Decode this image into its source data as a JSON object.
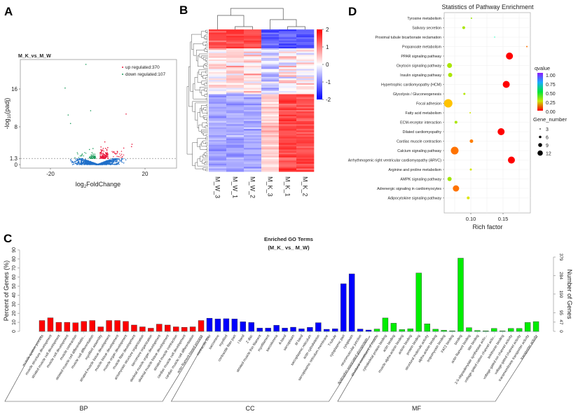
{
  "panels": {
    "a": "A",
    "b": "B",
    "c": "C",
    "d": "D"
  },
  "chart_data": [
    {
      "panel": "A",
      "type": "scatter",
      "title": "M_K_vs_M_W",
      "xlabel": {
        "pre": "log",
        "sub": "2",
        "post": "FoldChange"
      },
      "ylabel": {
        "pre": "-log",
        "sub": "10",
        "post": "(padj)"
      },
      "xticks": [
        "-20",
        "20"
      ],
      "xtick_values": [
        -20,
        20
      ],
      "yticks": [
        "0",
        "1.3",
        "8",
        "16"
      ],
      "ytick_values": [
        0,
        1.3,
        8,
        16
      ],
      "xlim": [
        -33,
        33
      ],
      "ylim": [
        -0.8,
        22.3
      ],
      "threshold_line": 1.3,
      "legend": [
        {
          "label": "up regulated:370",
          "color": "#e8173b"
        },
        {
          "label": "down regulated:107",
          "color": "#1a9a5a"
        }
      ],
      "colors": {
        "up": "#e8173b",
        "down": "#1a9a5a",
        "ns": "#1f6fc9"
      },
      "outliers": [
        [
          -5,
          21.2
        ],
        [
          -13.8,
          16.2
        ],
        [
          -12.5,
          10.5
        ],
        [
          -11.5,
          8.7
        ],
        [
          -3,
          11.4
        ],
        [
          12,
          10.7
        ],
        [
          14.5,
          4.3
        ],
        [
          14.3,
          3.8
        ],
        [
          3,
          4.8
        ],
        [
          11,
          3.5
        ],
        [
          -2,
          3.4
        ],
        [
          -3.5,
          3.2
        ]
      ]
    },
    {
      "panel": "B",
      "type": "heatmap",
      "columns": [
        "M_W_3",
        "M_W_1",
        "M_W_2",
        "M_K_3",
        "M_K_1",
        "M_K_2"
      ],
      "colorbar": {
        "ticks": [
          "2",
          "1",
          "0",
          "-1",
          "-2"
        ],
        "tick_values": [
          2,
          1,
          0,
          -1,
          -2
        ],
        "low": "#0000ff",
        "mid": "#ffffff",
        "high": "#ff0000"
      }
    },
    {
      "panel": "C",
      "type": "bar",
      "title": "Enriched GO Terms",
      "subtitle": "(M_K_ vs_ M_W)",
      "ylabel": "Percent of Genes (%)",
      "ylabel_right": "Number of Genes",
      "yticks": [
        "0",
        "10",
        "20",
        "30",
        "40",
        "50",
        "60",
        "70",
        "80",
        "90"
      ],
      "ylim": [
        0,
        90
      ],
      "yticks_right": [
        "0",
        "47",
        "95",
        "190",
        "284",
        "379"
      ],
      "groups": [
        {
          "name": "BP",
          "color": "#ff0000",
          "categories": [
            "muscle system process",
            "muscle structure development",
            "striated muscle cell development",
            "muscle cell development",
            "muscle contraction",
            "striated muscle cell differentiatio...",
            "muscle cell differentiation",
            "myofibril assembly",
            "striated muscle tissue development",
            "muscle tissue development",
            "muscle organ development",
            "muscle fiber development",
            "actomyosin structure organization",
            "sarcomere organization",
            "skeletal muscle organ development",
            "skeletal muscle tissue development",
            "striated muscle contraction",
            "cardiac muscle cell development",
            "cardiac muscle cell differentiation",
            "actin filament-based process"
          ],
          "values": [
            12,
            15,
            10,
            10,
            9.5,
            11,
            12,
            5,
            12,
            12,
            11,
            7,
            5,
            3.5,
            8,
            7,
            5,
            4.5,
            5,
            12
          ]
        },
        {
          "name": "CC",
          "color": "#0000ff",
          "categories": [
            "contractile fiber",
            "sarcomere",
            "myofibril",
            "contractile fiber part",
            "I band",
            "Z disc",
            "striated muscle thin filament",
            "myofilament",
            "sarcolemma",
            "A band",
            "sarcoplasm",
            "M band",
            "sarcoplasmic reticulum",
            "actin cytoskeleton",
            "sarcoplasmic reticulum membrane",
            "T-tubule",
            "cytoplasmic part",
            "cytoplasm",
            "neuromuscular junction",
            "dystrophin-associated glycoprotein ..."
          ],
          "values": [
            14.5,
            13.7,
            14,
            13.7,
            10.6,
            9.8,
            3.6,
            3.6,
            6.7,
            3.6,
            4.6,
            2.8,
            4.4,
            9.6,
            2.3,
            2.8,
            52.7,
            63.6,
            2.6,
            1.5
          ]
        },
        {
          "name": "MF",
          "color": "#00ee00",
          "categories": [
            "structural constituent of muscle",
            "cytoskeletal protein binding",
            "actin binding",
            "muscle alpha-actinin binding",
            "actinin binding",
            "protein binding",
            "structural molecule activity",
            "alpha-actinin binding",
            "tropomyosin binding",
            "FATZ binding",
            "binding",
            "actin filament binding",
            "titin binding",
            "2-5-oligoadenylate synthetase activ...",
            "voltage-gated cation channel activ...",
            "telethonin binding",
            "voltage-gated ion channel activity",
            "voltage-gated channel activity",
            "transmembrane transporter activity",
            "transporter activity"
          ],
          "values": [
            2.6,
            14.8,
            9,
            2,
            2.8,
            64.6,
            8.3,
            2.4,
            1.2,
            0.6,
            81,
            4.1,
            0.9,
            0.6,
            3.2,
            0.5,
            3.2,
            3.2,
            9.8,
            10.8
          ]
        }
      ]
    },
    {
      "panel": "D",
      "type": "scatter",
      "title": "Statistics of Pathway Enrichment",
      "xlabel": "Rich factor",
      "xticks": [
        "0.10",
        "0.15"
      ],
      "xtick_values": [
        0.1,
        0.15
      ],
      "xlim": [
        0.058,
        0.192
      ],
      "legend_color_title": "qvalue",
      "legend_color_ticks": [
        "1.00",
        "0.75",
        "0.50",
        "0.25",
        "0.00"
      ],
      "legend_size_title": "Gene_number",
      "legend_size_ticks": [
        "3",
        "6",
        "9",
        "12"
      ],
      "pathways": [
        {
          "name": "Tyrosine metabolism",
          "rich": 0.101,
          "q": 0.3,
          "genes": 2
        },
        {
          "name": "Salivary secretion",
          "rich": 0.089,
          "q": 0.28,
          "genes": 4
        },
        {
          "name": "Proximal tubule bicarbonate reclamation",
          "rich": 0.137,
          "q": 0.6,
          "genes": 1
        },
        {
          "name": "Propanoate metabolism",
          "rich": 0.187,
          "q": 0.1,
          "genes": 2
        },
        {
          "name": "PPAR signaling pathway",
          "rich": 0.16,
          "q": 0.0,
          "genes": 10
        },
        {
          "name": "Oxytocin signaling pathway",
          "rich": 0.067,
          "q": 0.28,
          "genes": 7
        },
        {
          "name": "Insulin signaling pathway",
          "rich": 0.068,
          "q": 0.28,
          "genes": 6
        },
        {
          "name": "Hypertrophic cardiomyopathy (HCM)",
          "rich": 0.155,
          "q": 0.0,
          "genes": 10
        },
        {
          "name": "Glycolysis / Gluconeogenesis",
          "rich": 0.09,
          "q": 0.27,
          "genes": 3
        },
        {
          "name": "Focal adhesion",
          "rich": 0.065,
          "q": 0.17,
          "genes": 12
        },
        {
          "name": "Fatty acid metabolism",
          "rich": 0.099,
          "q": 0.24,
          "genes": 2
        },
        {
          "name": "ECM-receptor interaction",
          "rich": 0.077,
          "q": 0.28,
          "genes": 4
        },
        {
          "name": "Dilated cardiomyopathy",
          "rich": 0.147,
          "q": 0.0,
          "genes": 10
        },
        {
          "name": "Cardiac muscle contraction",
          "rich": 0.101,
          "q": 0.11,
          "genes": 5
        },
        {
          "name": "Calcium signaling pathway",
          "rich": 0.075,
          "q": 0.1,
          "genes": 11
        },
        {
          "name": "Arrhythmogenic right ventricular cardiomyopathy (ARVC)",
          "rich": 0.163,
          "q": 0.0,
          "genes": 10
        },
        {
          "name": "Arginine and proline metabolism",
          "rich": 0.1,
          "q": 0.24,
          "genes": 3
        },
        {
          "name": "AMPK signaling pathway",
          "rich": 0.067,
          "q": 0.29,
          "genes": 6
        },
        {
          "name": "Adrenergic signaling in cardiomyocytes",
          "rich": 0.077,
          "q": 0.1,
          "genes": 9
        },
        {
          "name": "Adipocytokine signaling pathway",
          "rich": 0.096,
          "q": 0.23,
          "genes": 4
        }
      ]
    }
  ]
}
